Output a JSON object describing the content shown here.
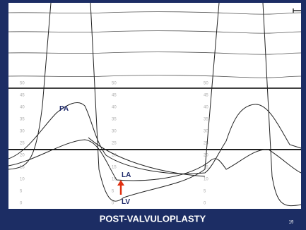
{
  "labels": {
    "pa": "PA",
    "la": "LA",
    "lv": "LV"
  },
  "scale_labels": {
    "left": [
      50,
      45,
      40,
      35,
      30,
      25,
      20,
      15,
      10,
      5,
      0
    ],
    "middle": [
      50,
      45,
      40,
      35,
      30,
      25,
      20,
      15,
      10,
      5,
      0
    ],
    "right": [
      50,
      45,
      40,
      35,
      30,
      25,
      20,
      15,
      10,
      5,
      0
    ]
  },
  "caption": "POST-VALVULOPLASTY",
  "page_number": "19"
}
